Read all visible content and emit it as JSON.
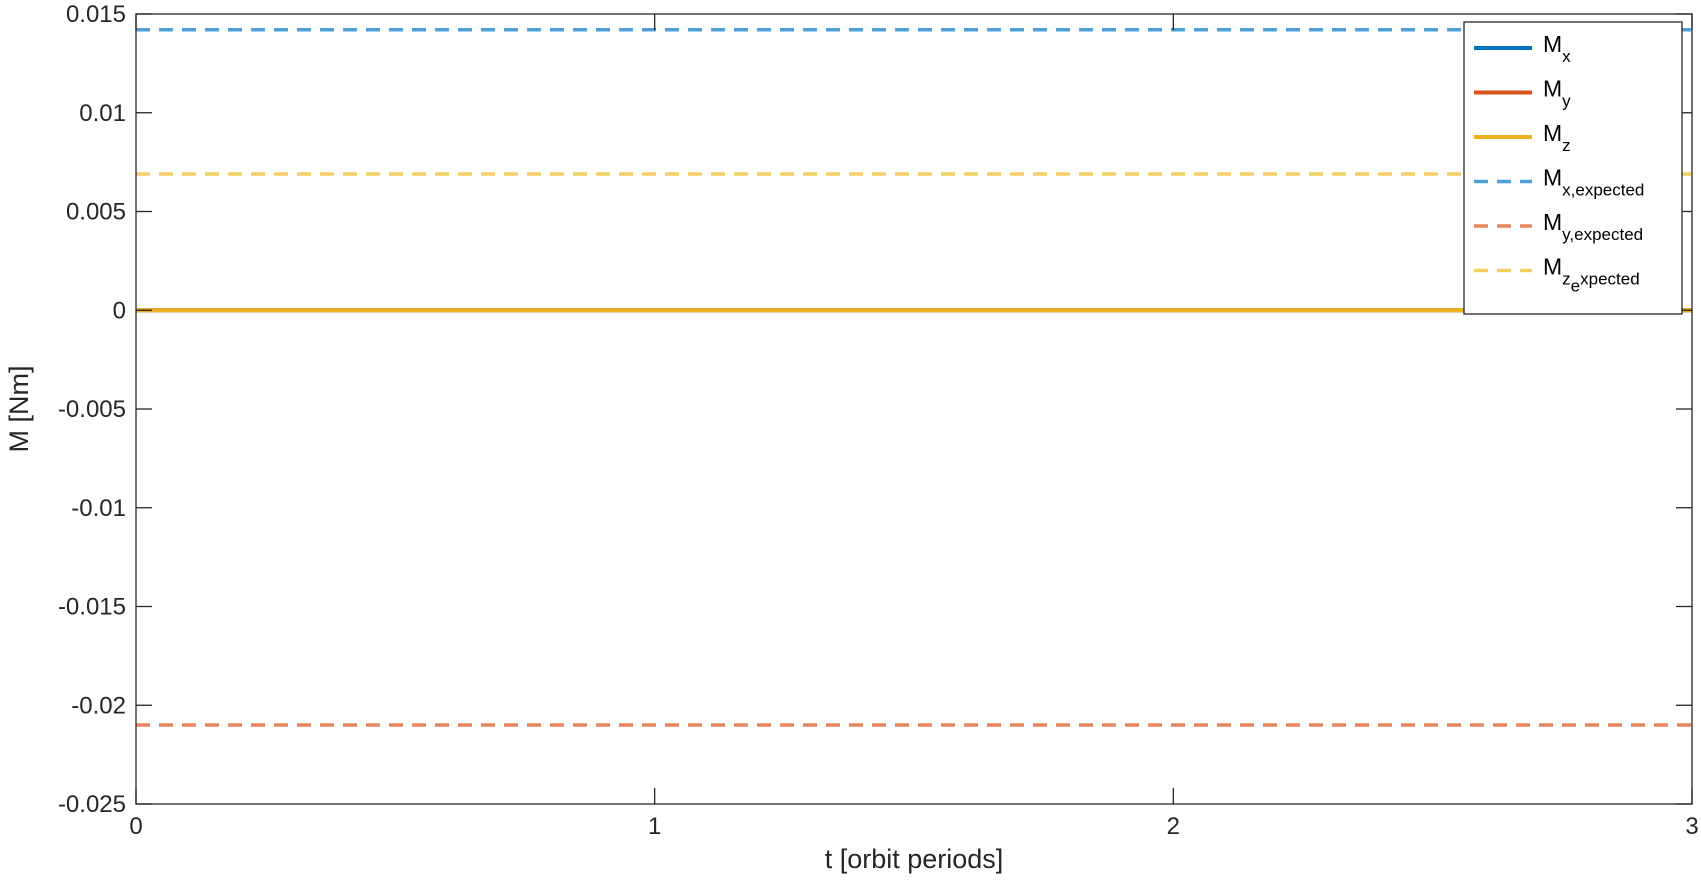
{
  "chart_data": {
    "type": "line",
    "xlabel": "t [orbit periods]",
    "ylabel": "M [Nm]",
    "xlim": [
      0,
      3
    ],
    "ylim": [
      -0.025,
      0.015
    ],
    "x_ticks": [
      0,
      1,
      2,
      3
    ],
    "x_tick_labels": [
      "0",
      "1",
      "2",
      "3"
    ],
    "y_ticks": [
      -0.025,
      -0.02,
      -0.015,
      -0.01,
      -0.005,
      0,
      0.005,
      0.01,
      0.015
    ],
    "y_tick_labels": [
      "-0.025",
      "-0.02",
      "-0.015",
      "-0.01",
      "-0.005",
      "0",
      "0.005",
      "0.01",
      "0.015"
    ],
    "grid": false,
    "legend_position": "top-right",
    "series": [
      {
        "key": "mx",
        "base": "M",
        "sub": "x",
        "style": "solid",
        "color": "#0072BD",
        "x": [
          0,
          3
        ],
        "y": [
          0,
          0
        ]
      },
      {
        "key": "my",
        "base": "M",
        "sub": "y",
        "style": "solid",
        "color": "#D95319",
        "x": [
          0,
          3
        ],
        "y": [
          0,
          0
        ]
      },
      {
        "key": "mz",
        "base": "M",
        "sub": "z",
        "style": "solid",
        "color": "#EDB120",
        "x": [
          0,
          3
        ],
        "y": [
          0,
          0
        ]
      },
      {
        "key": "mx-expected",
        "base": "M",
        "sub": "x,expected",
        "style": "dashed",
        "color": "#4DA0D8",
        "x": [
          0,
          3
        ],
        "y": [
          0.0142,
          0.0142
        ]
      },
      {
        "key": "my-expected",
        "base": "M",
        "sub": "y,expected",
        "style": "dashed",
        "color": "#E5865E",
        "x": [
          0,
          3
        ],
        "y": [
          -0.021,
          -0.021
        ]
      },
      {
        "key": "mz-expected",
        "base": "M",
        "sub": "z",
        "sub2": "e",
        "tail": "xpected",
        "style": "dashed",
        "color": "#F2CF63",
        "x": [
          0,
          3
        ],
        "y": [
          0.0069,
          0.0069
        ]
      }
    ]
  }
}
